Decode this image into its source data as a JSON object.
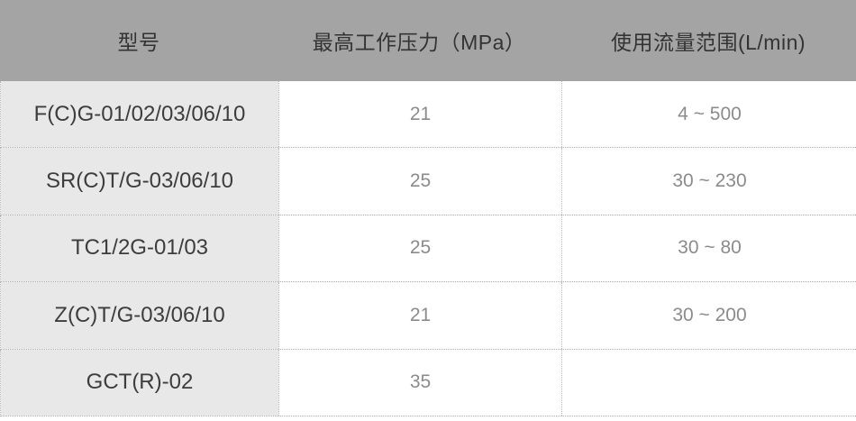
{
  "table": {
    "headers": [
      "型号",
      "最高工作压力（MPa）",
      "使用流量范围(L/min)"
    ],
    "rows": [
      {
        "model": "F(C)G-01/02/03/06/10",
        "pressure": "21",
        "flow": "4 ~ 500"
      },
      {
        "model": "SR(C)T/G-03/06/10",
        "pressure": "25",
        "flow": "30 ~ 230"
      },
      {
        "model": "TC1/2G-01/03",
        "pressure": "25",
        "flow": "30 ~ 80"
      },
      {
        "model": "Z(C)T/G-03/06/10",
        "pressure": "21",
        "flow": "30 ~ 200"
      },
      {
        "model": "GCT(R)-02",
        "pressure": "35",
        "flow": ""
      }
    ],
    "colors": {
      "header_bg": "#a4a4a4",
      "header_text": "#333333",
      "model_col_bg": "#e8e8e8",
      "model_text": "#3d3d3d",
      "value_text": "#8a8b8d",
      "border_dotted": "#a9a9a9",
      "row_bg": "#ffffff"
    }
  },
  "chart_data": {
    "type": "table",
    "title": "",
    "columns": [
      "型号",
      "最高工作压力（MPa）",
      "使用流量范围(L/min)"
    ],
    "rows": [
      [
        "F(C)G-01/02/03/06/10",
        "21",
        "4 ~ 500"
      ],
      [
        "SR(C)T/G-03/06/10",
        "25",
        "30 ~ 230"
      ],
      [
        "TC1/2G-01/03",
        "25",
        "30 ~ 80"
      ],
      [
        "Z(C)T/G-03/06/10",
        "21",
        "30 ~ 200"
      ],
      [
        "GCT(R)-02",
        "35",
        ""
      ]
    ]
  }
}
